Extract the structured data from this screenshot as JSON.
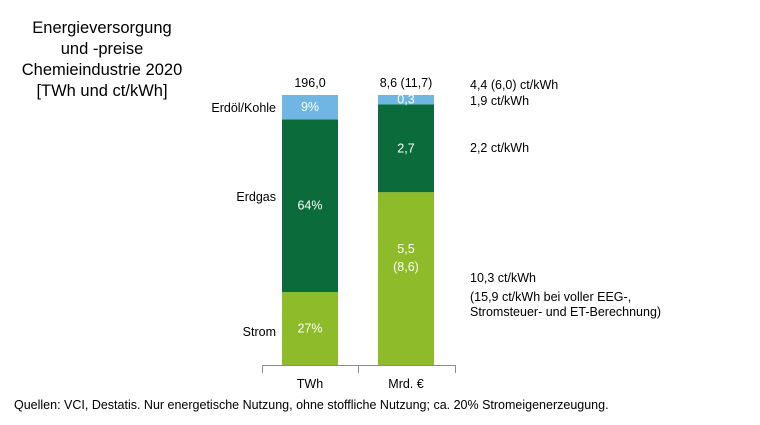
{
  "chart_data": {
    "type": "bar",
    "stacked": true,
    "normalized": true,
    "title_lines": [
      "Energieversorgung",
      "und -preise",
      "Chemieindustrie 2020",
      "[TWh und ct/kWh]"
    ],
    "categories": [
      "TWh",
      "Mrd. €"
    ],
    "totals": [
      "196,0",
      "8,6 (11,7)"
    ],
    "series": [
      {
        "name": "Strom",
        "color": "#8dbb2a",
        "values": [
          27,
          64
        ],
        "labels": [
          "27%",
          "5,5\n(8,6)"
        ],
        "label_color": "#ffffff"
      },
      {
        "name": "Erdgas",
        "color": "#0b6b3a",
        "values": [
          64,
          32.5
        ],
        "labels": [
          "64%",
          "2,7"
        ],
        "label_color": "#ffffff"
      },
      {
        "name": "Erdöl/Kohle",
        "color": "#6fb6e3",
        "values": [
          9,
          3.5
        ],
        "labels": [
          "9%",
          "0,3"
        ],
        "label_color": "#ffffff"
      }
    ],
    "price_annotations": [
      {
        "lines": [
          "4,4 (6,0) ct/kWh"
        ]
      },
      {
        "lines": [
          "1,9 ct/kWh"
        ]
      },
      {
        "lines": [
          "2,2 ct/kWh"
        ]
      },
      {
        "lines": [
          "10,3 ct/kWh",
          "(15,9 ct/kWh bei voller EEG-,",
          " Stromsteuer- und ET-Berechnung)"
        ]
      }
    ],
    "source": "Quellen: VCI, Destatis. Nur energetische Nutzung, ohne stoffliche Nutzung; ca. 20% Stromeigenerzeugung."
  }
}
